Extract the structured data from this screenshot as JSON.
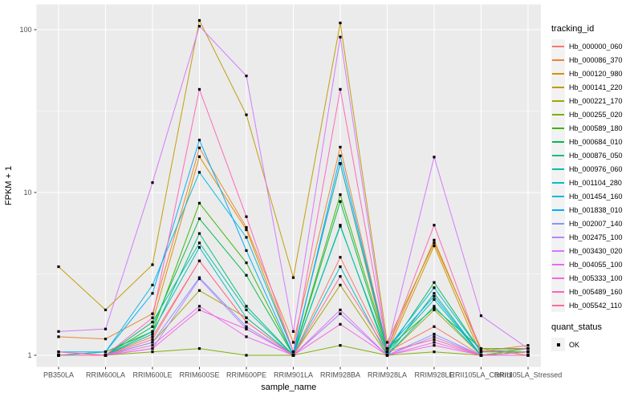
{
  "figure": {
    "background": "#FFFFFF",
    "panel_background": "#EBEBEB",
    "gridline_color": "#FFFFFF",
    "axis_text_color": "#4D4D4D",
    "tick_color": "#333333",
    "title_text_color": "#000000"
  },
  "axes": {
    "x_title": "sample_name",
    "y_title": "FPKM + 1",
    "y_tick_labels": [
      "1",
      "10",
      "100"
    ]
  },
  "legend": {
    "tracking_title": "tracking_id",
    "quant_title": "quant_status",
    "quant_items": [
      {
        "label": "OK"
      }
    ]
  },
  "chart_data": {
    "type": "line",
    "title": "",
    "xlabel": "sample_name",
    "ylabel": "FPKM + 1",
    "y_scale": "log10",
    "ylim": [
      0.9,
      140
    ],
    "y_major_ticks": [
      1,
      10,
      100
    ],
    "grid": "on",
    "legend_position": "right",
    "point_marker": {
      "shape": "square",
      "color": "#000000",
      "meaning": "quant_status OK"
    },
    "categories": [
      "PB350LA",
      "RRIM600LA",
      "RRIM600LE",
      "RRIM600SE",
      "RRIM600PE",
      "RRIM901LA",
      "RRIM928BA",
      "RRIM928LA",
      "RRIM928LE",
      "RRII105LA_Control",
      "RRII105LA_Stressed"
    ],
    "series": [
      {
        "name": "Hb_000000_060",
        "color": "#F8766D",
        "values": [
          1.0,
          1.0,
          1.3,
          3.8,
          1.6,
          1.0,
          4.0,
          1.05,
          1.5,
          1.0,
          1.05
        ]
      },
      {
        "name": "Hb_000086_370",
        "color": "#EA8331",
        "values": [
          1.3,
          1.26,
          1.8,
          18.8,
          6.1,
          1.2,
          19.0,
          1.1,
          5.1,
          1.06,
          1.15
        ]
      },
      {
        "name": "Hb_000120_980",
        "color": "#D89000",
        "values": [
          1.05,
          1.0,
          1.6,
          16.6,
          5.9,
          1.05,
          15.0,
          1.05,
          4.7,
          1.0,
          1.05
        ]
      },
      {
        "name": "Hb_000141_220",
        "color": "#C09B00",
        "values": [
          3.5,
          1.9,
          3.6,
          114.0,
          30.0,
          3.0,
          110.0,
          1.2,
          4.9,
          1.1,
          1.0
        ]
      },
      {
        "name": "Hb_000221_170",
        "color": "#A3A500",
        "values": [
          1.0,
          1.0,
          1.2,
          2.5,
          1.7,
          1.0,
          2.7,
          1.0,
          1.9,
          1.0,
          1.0
        ]
      },
      {
        "name": "Hb_000255_020",
        "color": "#7CAE00",
        "values": [
          1.0,
          1.0,
          1.05,
          1.1,
          1.0,
          1.0,
          1.15,
          1.0,
          1.05,
          1.0,
          1.1
        ]
      },
      {
        "name": "Hb_000589_180",
        "color": "#39B600",
        "values": [
          1.0,
          1.05,
          1.4,
          8.6,
          3.7,
          1.0,
          9.7,
          1.1,
          1.95,
          1.1,
          1.1
        ]
      },
      {
        "name": "Hb_000684_010",
        "color": "#00BB4E",
        "values": [
          1.0,
          1.0,
          1.5,
          6.9,
          3.1,
          1.0,
          8.8,
          1.05,
          2.8,
          1.05,
          1.05
        ]
      },
      {
        "name": "Hb_000876_050",
        "color": "#00BF7D",
        "values": [
          1.0,
          1.0,
          1.35,
          5.6,
          2.0,
          1.0,
          6.3,
          1.0,
          2.4,
          1.0,
          1.0
        ]
      },
      {
        "name": "Hb_000976_060",
        "color": "#00C1A3",
        "values": [
          1.0,
          1.0,
          1.6,
          4.9,
          1.9,
          1.0,
          6.2,
          1.05,
          2.2,
          1.0,
          1.05
        ]
      },
      {
        "name": "Hb_001104_280",
        "color": "#00BFC4",
        "values": [
          1.0,
          1.0,
          1.4,
          4.6,
          1.7,
          1.0,
          3.5,
          1.0,
          2.0,
          1.0,
          1.0
        ]
      },
      {
        "name": "Hb_001454_160",
        "color": "#00B8E0",
        "values": [
          1.0,
          1.05,
          2.7,
          13.3,
          5.3,
          1.05,
          15.1,
          1.1,
          2.6,
          1.05,
          1.1
        ]
      },
      {
        "name": "Hb_001838_010",
        "color": "#00ACFC",
        "values": [
          1.05,
          1.05,
          2.4,
          21.0,
          4.4,
          1.0,
          16.8,
          1.1,
          2.3,
          1.0,
          1.05
        ]
      },
      {
        "name": "Hb_002007_140",
        "color": "#8B93FF",
        "values": [
          1.0,
          1.0,
          1.2,
          3.0,
          1.5,
          1.0,
          1.8,
          1.0,
          1.35,
          1.0,
          1.0
        ]
      },
      {
        "name": "Hb_002475_100",
        "color": "#B983FF",
        "values": [
          1.0,
          1.0,
          1.1,
          2.95,
          1.45,
          1.0,
          1.8,
          1.0,
          1.3,
          1.0,
          1.0
        ]
      },
      {
        "name": "Hb_003430_020",
        "color": "#D575FE",
        "values": [
          1.4,
          1.45,
          11.5,
          105.0,
          52.0,
          1.4,
          90.0,
          1.1,
          16.5,
          1.75,
          1.1
        ]
      },
      {
        "name": "Hb_004055_100",
        "color": "#E76BF3",
        "values": [
          1.0,
          1.0,
          1.15,
          2.0,
          1.3,
          1.0,
          1.9,
          1.0,
          1.2,
          1.0,
          1.0
        ]
      },
      {
        "name": "Hb_005333_100",
        "color": "#F763E0",
        "values": [
          1.0,
          1.0,
          1.1,
          1.9,
          1.45,
          1.0,
          1.55,
          1.0,
          1.15,
          1.0,
          1.0
        ]
      },
      {
        "name": "Hb_005489_160",
        "color": "#FF62BC",
        "values": [
          1.05,
          1.0,
          1.7,
          43.0,
          7.1,
          1.05,
          43.0,
          1.1,
          6.3,
          1.05,
          1.1
        ]
      },
      {
        "name": "Hb_005542_110",
        "color": "#FF6A98",
        "values": [
          1.0,
          1.0,
          1.25,
          3.8,
          1.6,
          1.0,
          3.05,
          1.05,
          1.25,
          1.0,
          1.05
        ]
      }
    ]
  }
}
